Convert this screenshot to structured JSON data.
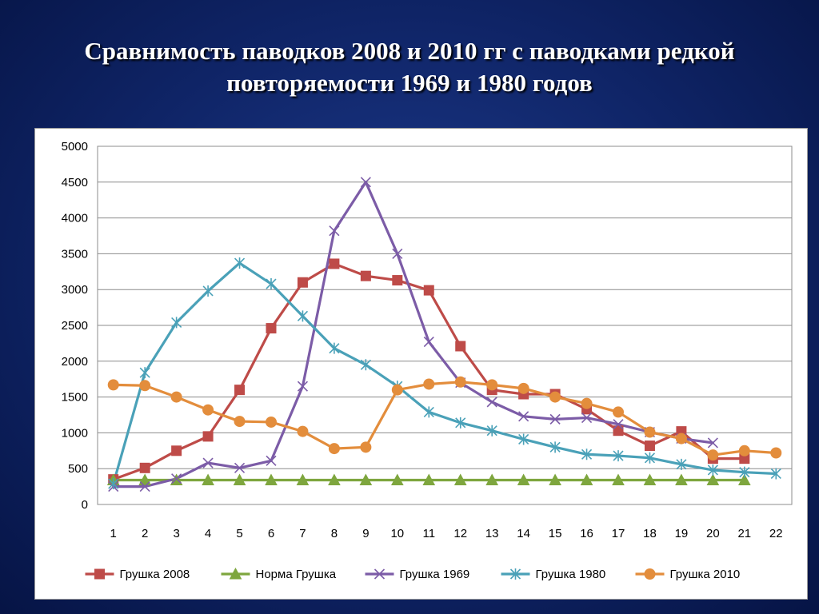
{
  "slide": {
    "title_line1": "Сравнимость паводков 2008 и 2010 гг с паводками редкой",
    "title_line2": "повторяемости 1969 и 1980 годов"
  },
  "chart_data": {
    "type": "line",
    "title": "",
    "xlabel": "",
    "ylabel": "",
    "x": [
      1,
      2,
      3,
      4,
      5,
      6,
      7,
      8,
      9,
      10,
      11,
      12,
      13,
      14,
      15,
      16,
      17,
      18,
      19,
      20,
      21,
      22
    ],
    "ylim": [
      0,
      5000
    ],
    "yticks": [
      0,
      500,
      1000,
      1500,
      2000,
      2500,
      3000,
      3500,
      4000,
      4500,
      5000
    ],
    "grid": true,
    "legend_position": "bottom",
    "series": [
      {
        "name": "Грушка 2008",
        "color": "#be4b48",
        "marker": "square",
        "values": [
          350,
          510,
          750,
          950,
          1600,
          2460,
          3100,
          3360,
          3190,
          3130,
          2990,
          2210,
          1600,
          1540,
          1540,
          1330,
          1030,
          820,
          1020,
          640,
          640,
          null
        ]
      },
      {
        "name": "Норма Грушка",
        "color": "#7ea63e",
        "marker": "triangle",
        "values": [
          340,
          340,
          340,
          340,
          340,
          340,
          340,
          340,
          340,
          340,
          340,
          340,
          340,
          340,
          340,
          340,
          340,
          340,
          340,
          340,
          340,
          null
        ]
      },
      {
        "name": "Грушка 1969",
        "color": "#7c5ca7",
        "marker": "x",
        "values": [
          250,
          250,
          360,
          580,
          510,
          610,
          1650,
          3820,
          4500,
          3500,
          2270,
          1700,
          1430,
          1230,
          1190,
          1210,
          1120,
          1010,
          920,
          860,
          null,
          null
        ]
      },
      {
        "name": "Грушка 1980",
        "color": "#4aa1b8",
        "marker": "asterisk",
        "values": [
          290,
          1840,
          2540,
          2980,
          3370,
          3080,
          2630,
          2180,
          1950,
          1650,
          1290,
          1140,
          1030,
          910,
          800,
          700,
          680,
          650,
          560,
          480,
          450,
          430
        ]
      },
      {
        "name": "Грушка 2010",
        "color": "#e38d3c",
        "marker": "circle",
        "values": [
          1670,
          1660,
          1500,
          1320,
          1160,
          1150,
          1020,
          780,
          800,
          1600,
          1680,
          1710,
          1670,
          1620,
          1500,
          1410,
          1290,
          1010,
          920,
          690,
          750,
          720
        ]
      }
    ]
  }
}
